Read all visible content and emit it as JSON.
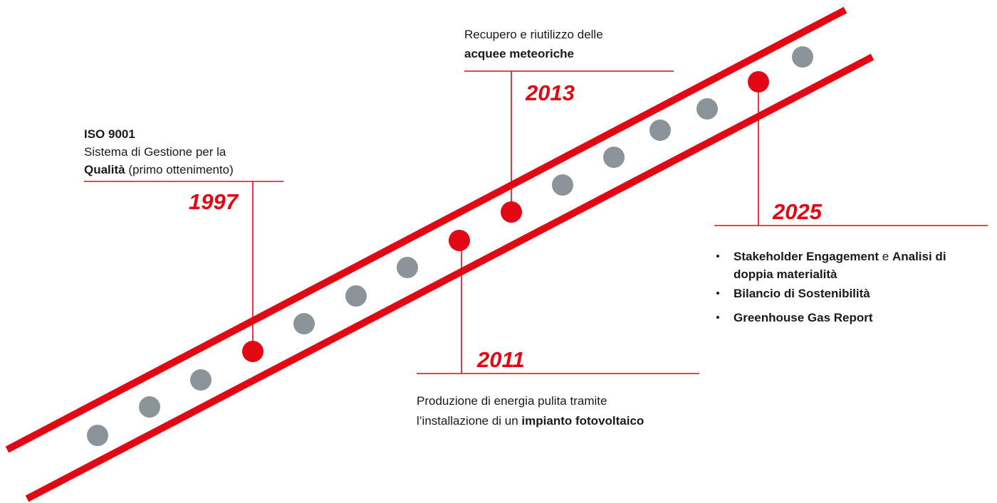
{
  "milestones": [
    {
      "year": "1997",
      "lines": [
        {
          "segments": [
            {
              "text": "ISO 9001",
              "bold": true
            }
          ]
        },
        {
          "segments": [
            {
              "text": "Sistema di Gestione per la",
              "bold": false
            }
          ]
        },
        {
          "segments": [
            {
              "text": "Qualità",
              "bold": true
            },
            {
              "text": " (primo ottenimento)",
              "bold": false
            }
          ]
        }
      ]
    },
    {
      "year": "2013",
      "lines": [
        {
          "segments": [
            {
              "text": "Recupero e riutilizzo delle",
              "bold": false
            }
          ]
        },
        {
          "segments": [
            {
              "text": "acquee meteoriche",
              "bold": true
            }
          ]
        }
      ]
    },
    {
      "year": "2011",
      "lines": [
        {
          "segments": [
            {
              "text": "Produzione di energia pulita tramite",
              "bold": false
            }
          ]
        },
        {
          "segments": [
            {
              "text": "l’installazione di un ",
              "bold": false
            },
            {
              "text": "impianto fotovoltaico",
              "bold": true
            }
          ]
        }
      ]
    },
    {
      "year": "2025",
      "lines": [
        {
          "bullet": true,
          "segments": [
            {
              "text": "Stakeholder Engagement",
              "bold": true
            },
            {
              "text": " e ",
              "bold": false
            },
            {
              "text": "Analisi di",
              "bold": true
            }
          ]
        },
        {
          "segments": [
            {
              "text": "doppia materialità",
              "bold": true
            }
          ]
        },
        {
          "bullet": true,
          "segments": [
            {
              "text": "Bilancio di Sostenibilità",
              "bold": true
            }
          ]
        },
        {
          "bullet": true,
          "segments": [
            {
              "text": "Greenhouse Gas Report",
              "bold": true
            }
          ]
        }
      ]
    }
  ]
}
